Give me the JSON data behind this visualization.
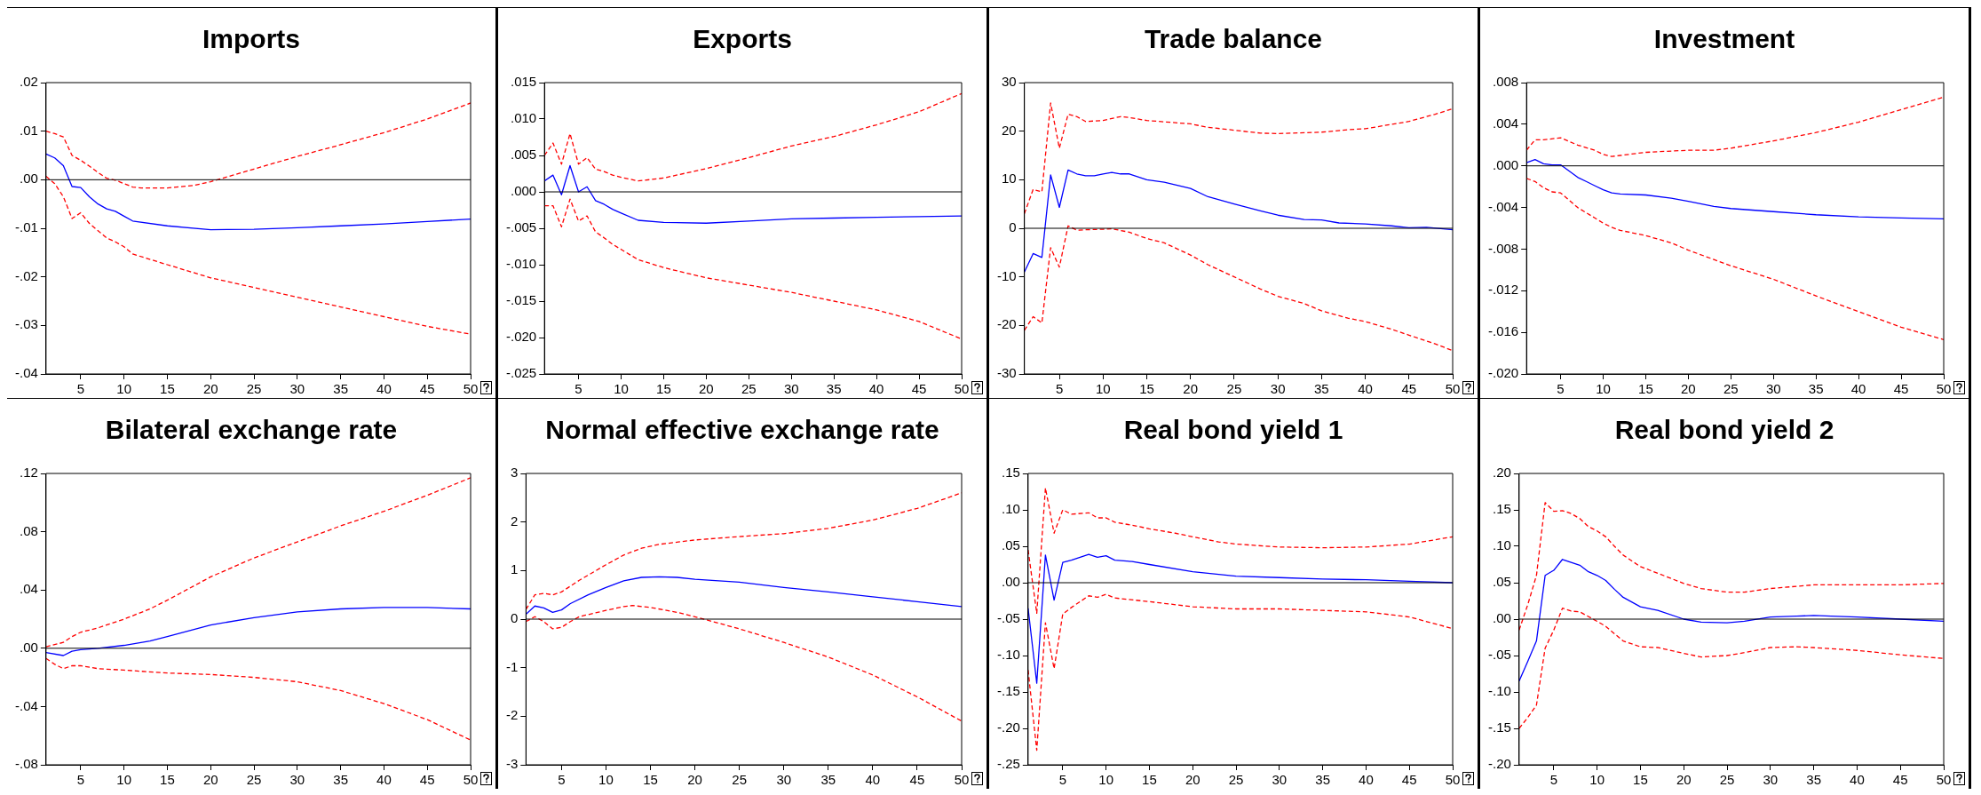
{
  "chart_data": [
    {
      "type": "line",
      "title": "Imports",
      "xlim": [
        1,
        50
      ],
      "xticks": [
        5,
        10,
        15,
        20,
        25,
        30,
        35,
        40,
        45,
        50
      ],
      "ylim": [
        -0.04,
        0.02
      ],
      "yticks": [
        {
          "value": -0.04,
          "label": "-.04"
        },
        {
          "value": -0.03,
          "label": "-.03"
        },
        {
          "value": -0.02,
          "label": "-.02"
        },
        {
          "value": -0.01,
          "label": "-.01"
        },
        {
          "value": 0,
          "label": ".00"
        },
        {
          "value": 0.01,
          "label": ".01"
        },
        {
          "value": 0.02,
          "label": ".02"
        }
      ],
      "grid": false,
      "legend": false,
      "marker": "none",
      "ref_lines": [
        {
          "axis": "y",
          "value": 0,
          "color": "#000000"
        }
      ],
      "series": [
        {
          "color": "#0000ff",
          "line_style": "solid",
          "x": [
            1,
            2,
            3,
            4,
            5,
            6,
            7,
            8,
            9,
            10,
            11,
            15,
            20,
            25,
            30,
            35,
            40,
            45,
            50
          ],
          "values": [
            0.0053,
            0.0045,
            0.0029,
            -0.0014,
            -0.0016,
            -0.0035,
            -0.005,
            -0.006,
            -0.0065,
            -0.0075,
            -0.0085,
            -0.0095,
            -0.0103,
            -0.0102,
            -0.0099,
            -0.0095,
            -0.0091,
            -0.0086,
            -0.0081
          ]
        },
        {
          "color": "#ff0000",
          "line_style": "dashed",
          "x": [
            1,
            2,
            3,
            4,
            5,
            6,
            7,
            8,
            9,
            10,
            11,
            12,
            15,
            18,
            20,
            25,
            30,
            35,
            40,
            45,
            50
          ],
          "values": [
            0.01,
            0.0095,
            0.0088,
            0.005,
            0.004,
            0.0028,
            0.0015,
            0.0003,
            -0.0001,
            -0.0008,
            -0.0015,
            -0.0017,
            -0.0017,
            -0.0012,
            -0.0004,
            0.0022,
            0.0048,
            0.0072,
            0.0097,
            0.0125,
            0.0158
          ]
        },
        {
          "color": "#ff0000",
          "line_style": "dashed",
          "x": [
            1,
            2,
            3,
            4,
            5,
            6,
            7,
            8,
            9,
            10,
            11,
            15,
            20,
            25,
            30,
            35,
            40,
            45,
            50
          ],
          "values": [
            0.0007,
            -0.0008,
            -0.0035,
            -0.008,
            -0.0068,
            -0.009,
            -0.0105,
            -0.012,
            -0.0128,
            -0.0138,
            -0.0153,
            -0.0175,
            -0.0202,
            -0.0222,
            -0.0242,
            -0.0262,
            -0.0282,
            -0.0302,
            -0.0318
          ]
        }
      ]
    },
    {
      "type": "line",
      "title": "Exports",
      "xlim": [
        1,
        50
      ],
      "xticks": [
        5,
        10,
        15,
        20,
        25,
        30,
        35,
        40,
        45,
        50
      ],
      "ylim": [
        -0.025,
        0.015
      ],
      "yticks": [
        {
          "value": -0.025,
          "label": "-.025"
        },
        {
          "value": -0.02,
          "label": "-.020"
        },
        {
          "value": -0.015,
          "label": "-.015"
        },
        {
          "value": -0.01,
          "label": "-.010"
        },
        {
          "value": -0.005,
          "label": "-.005"
        },
        {
          "value": 0,
          "label": ".000"
        },
        {
          "value": 0.005,
          "label": ".005"
        },
        {
          "value": 0.01,
          "label": ".010"
        },
        {
          "value": 0.015,
          "label": ".015"
        }
      ],
      "grid": false,
      "legend": false,
      "marker": "none",
      "ref_lines": [
        {
          "axis": "y",
          "value": 0,
          "color": "#000000"
        }
      ],
      "series": [
        {
          "color": "#0000ff",
          "line_style": "solid",
          "x": [
            1,
            2,
            3,
            4,
            5,
            6,
            7,
            8,
            9,
            10,
            12,
            15,
            20,
            25,
            30,
            35,
            40,
            45,
            50
          ],
          "values": [
            0.0015,
            0.0023,
            -0.0004,
            0.0036,
            0,
            0.0007,
            -0.0012,
            -0.0017,
            -0.0024,
            -0.0029,
            -0.0039,
            -0.0042,
            -0.0043,
            -0.004,
            -0.0037,
            -0.0036,
            -0.0035,
            -0.0034,
            -0.0033
          ]
        },
        {
          "color": "#ff0000",
          "line_style": "dashed",
          "x": [
            1,
            2,
            3,
            4,
            5,
            6,
            7,
            8,
            9,
            10,
            12,
            15,
            20,
            25,
            30,
            35,
            40,
            45,
            50
          ],
          "values": [
            0.005,
            0.0067,
            0.0038,
            0.008,
            0.0038,
            0.0047,
            0.0031,
            0.0028,
            0.0023,
            0.002,
            0.0015,
            0.0019,
            0.0032,
            0.0047,
            0.0063,
            0.0076,
            0.0092,
            0.011,
            0.0135
          ]
        },
        {
          "color": "#ff0000",
          "line_style": "dashed",
          "x": [
            1,
            2,
            3,
            4,
            5,
            6,
            7,
            8,
            9,
            10,
            12,
            15,
            20,
            25,
            30,
            35,
            40,
            45,
            50
          ],
          "values": [
            -0.0019,
            -0.0019,
            -0.0048,
            -0.001,
            -0.004,
            -0.0033,
            -0.0055,
            -0.0063,
            -0.0072,
            -0.0079,
            -0.0093,
            -0.0104,
            -0.0118,
            -0.0128,
            -0.0138,
            -0.015,
            -0.0162,
            -0.0178,
            -0.0202
          ]
        }
      ]
    },
    {
      "type": "line",
      "title": "Trade balance",
      "xlim": [
        1,
        50
      ],
      "xticks": [
        5,
        10,
        15,
        20,
        25,
        30,
        35,
        40,
        45,
        50
      ],
      "ylim": [
        -30,
        30
      ],
      "yticks": [
        -30,
        -20,
        -10,
        0,
        10,
        20,
        30
      ],
      "grid": false,
      "legend": false,
      "marker": "none",
      "ref_lines": [
        {
          "axis": "y",
          "value": 0,
          "color": "#000000"
        }
      ],
      "series": [
        {
          "color": "#0000ff",
          "line_style": "solid",
          "x": [
            1,
            2,
            3,
            4,
            5,
            6,
            7,
            8,
            9,
            10,
            11,
            12,
            13,
            15,
            17,
            20,
            22,
            25,
            28,
            30,
            33,
            35,
            37,
            40,
            43,
            45,
            47,
            50
          ],
          "values": [
            -9,
            -5.2,
            -6,
            11,
            4.3,
            12,
            11.2,
            10.8,
            10.8,
            11.2,
            11.5,
            11.2,
            11.2,
            10,
            9.5,
            8.2,
            6.5,
            5,
            3.6,
            2.7,
            1.8,
            1.7,
            1.1,
            0.9,
            0.5,
            0.1,
            0.2,
            -0.3
          ]
        },
        {
          "color": "#ff0000",
          "line_style": "dashed",
          "x": [
            1,
            2,
            3,
            4,
            5,
            6,
            7,
            8,
            10,
            12,
            13,
            15,
            20,
            22,
            25,
            28,
            30,
            35,
            38,
            40,
            45,
            48,
            50
          ],
          "values": [
            3,
            8,
            7.5,
            25.8,
            16.5,
            23.5,
            23,
            22,
            22.2,
            23,
            22.8,
            22.2,
            21.5,
            20.8,
            20.2,
            19.6,
            19.5,
            19.8,
            20.3,
            20.5,
            22,
            23.5,
            24.6
          ]
        },
        {
          "color": "#ff0000",
          "line_style": "dashed",
          "x": [
            1,
            2,
            3,
            4,
            5,
            6,
            7,
            8,
            10,
            11,
            13,
            15,
            17,
            20,
            22,
            25,
            28,
            30,
            33,
            35,
            38,
            40,
            43,
            45,
            48,
            50
          ],
          "values": [
            -21,
            -18.2,
            -19.5,
            -4,
            -8,
            0.5,
            -0.4,
            -0.3,
            -0.2,
            -0.1,
            -0.8,
            -2.1,
            -3,
            -5.5,
            -7.5,
            -10,
            -12.5,
            -14,
            -15.5,
            -17,
            -18.5,
            -19.2,
            -20.8,
            -22,
            -23.8,
            -25.2
          ]
        }
      ]
    },
    {
      "type": "line",
      "title": "Investment",
      "xlim": [
        1,
        50
      ],
      "xticks": [
        5,
        10,
        15,
        20,
        25,
        30,
        35,
        40,
        45,
        50
      ],
      "ylim": [
        -0.02,
        0.008
      ],
      "yticks": [
        {
          "value": -0.02,
          "label": "-.020"
        },
        {
          "value": -0.016,
          "label": "-.016"
        },
        {
          "value": -0.012,
          "label": "-.012"
        },
        {
          "value": -0.008,
          "label": "-.008"
        },
        {
          "value": -0.004,
          "label": "-.004"
        },
        {
          "value": 0,
          "label": ".000"
        },
        {
          "value": 0.004,
          "label": ".004"
        },
        {
          "value": 0.008,
          "label": ".008"
        }
      ],
      "grid": false,
      "legend": false,
      "marker": "none",
      "ref_lines": [
        {
          "axis": "y",
          "value": 0,
          "color": "#000000"
        }
      ],
      "series": [
        {
          "color": "#0000ff",
          "line_style": "solid",
          "x": [
            1,
            2,
            3,
            4,
            5,
            6,
            7,
            8,
            9,
            10,
            11,
            12,
            15,
            18,
            20,
            23,
            25,
            30,
            35,
            40,
            45,
            50
          ],
          "values": [
            0.0003,
            0.0006,
            0.0002,
            0.0001,
            0.0001,
            -0.0005,
            -0.0011,
            -0.0015,
            -0.0019,
            -0.0023,
            -0.0026,
            -0.0027,
            -0.0028,
            -0.0031,
            -0.0034,
            -0.0039,
            -0.0041,
            -0.0044,
            -0.0047,
            -0.0049,
            -0.005,
            -0.0051
          ]
        },
        {
          "color": "#ff0000",
          "line_style": "dashed",
          "x": [
            1,
            2,
            3,
            5,
            7,
            9,
            10,
            11,
            12,
            15,
            20,
            23,
            25,
            30,
            35,
            40,
            45,
            50
          ],
          "values": [
            0.0015,
            0.0025,
            0.0025,
            0.0027,
            0.002,
            0.0015,
            0.0011,
            0.0009,
            0.001,
            0.0013,
            0.0015,
            0.0015,
            0.0017,
            0.0024,
            0.0032,
            0.0042,
            0.0054,
            0.0066
          ]
        },
        {
          "color": "#ff0000",
          "line_style": "dashed",
          "x": [
            1,
            2,
            3,
            4,
            5,
            6,
            7,
            8,
            9,
            10,
            11,
            12,
            15,
            18,
            20,
            23,
            25,
            30,
            35,
            40,
            45,
            50
          ],
          "values": [
            -0.0012,
            -0.0015,
            -0.0021,
            -0.0025,
            -0.0026,
            -0.0033,
            -0.004,
            -0.0045,
            -0.005,
            -0.0055,
            -0.0059,
            -0.0062,
            -0.0067,
            -0.0074,
            -0.0081,
            -0.009,
            -0.0096,
            -0.0109,
            -0.0125,
            -0.014,
            -0.0155,
            -0.0167
          ]
        }
      ]
    },
    {
      "type": "line",
      "title": "Bilateral exchange rate",
      "xlim": [
        1,
        50
      ],
      "xticks": [
        5,
        10,
        15,
        20,
        25,
        30,
        35,
        40,
        45,
        50
      ],
      "ylim": [
        -0.08,
        0.12
      ],
      "yticks": [
        {
          "value": -0.08,
          "label": "-.08"
        },
        {
          "value": -0.04,
          "label": "-.04"
        },
        {
          "value": 0,
          "label": ".00"
        },
        {
          "value": 0.04,
          "label": ".04"
        },
        {
          "value": 0.08,
          "label": ".08"
        },
        {
          "value": 0.12,
          "label": ".12"
        }
      ],
      "grid": false,
      "legend": false,
      "marker": "none",
      "ref_lines": [
        {
          "axis": "y",
          "value": 0,
          "color": "#000000"
        }
      ],
      "series": [
        {
          "color": "#0000ff",
          "line_style": "solid",
          "x": [
            1,
            3,
            4,
            5,
            7,
            10,
            13,
            15,
            20,
            25,
            30,
            35,
            40,
            45,
            50
          ],
          "values": [
            -0.003,
            -0.005,
            -0.002,
            -0.001,
            0,
            0.002,
            0.005,
            0.008,
            0.016,
            0.021,
            0.025,
            0.027,
            0.028,
            0.028,
            0.027
          ]
        },
        {
          "color": "#ff0000",
          "line_style": "dashed",
          "x": [
            1,
            3,
            4,
            5,
            7,
            10,
            13,
            15,
            20,
            25,
            30,
            35,
            40,
            45,
            50
          ],
          "values": [
            0.001,
            0.004,
            0.008,
            0.011,
            0.014,
            0.02,
            0.027,
            0.033,
            0.049,
            0.062,
            0.073,
            0.084,
            0.094,
            0.105,
            0.117
          ]
        },
        {
          "color": "#ff0000",
          "line_style": "dashed",
          "x": [
            1,
            2,
            3,
            4,
            5,
            7,
            10,
            15,
            20,
            25,
            30,
            35,
            40,
            45,
            50
          ],
          "values": [
            -0.007,
            -0.011,
            -0.014,
            -0.012,
            -0.012,
            -0.014,
            -0.015,
            -0.017,
            -0.018,
            -0.02,
            -0.023,
            -0.029,
            -0.038,
            -0.049,
            -0.063
          ]
        }
      ]
    },
    {
      "type": "line",
      "title": "Normal effective exchange rate",
      "xlim": [
        1,
        50
      ],
      "xticks": [
        5,
        10,
        15,
        20,
        25,
        30,
        35,
        40,
        45,
        50
      ],
      "ylim": [
        -3,
        3
      ],
      "yticks": [
        -3,
        -2,
        -1,
        0,
        1,
        2,
        3
      ],
      "grid": false,
      "legend": false,
      "marker": "none",
      "ref_lines": [
        {
          "axis": "y",
          "value": 0,
          "color": "#000000"
        }
      ],
      "series": [
        {
          "color": "#0000ff",
          "line_style": "solid",
          "x": [
            1,
            2,
            3,
            4,
            5,
            6,
            8,
            10,
            12,
            14,
            16,
            18,
            20,
            25,
            30,
            35,
            40,
            45,
            50
          ],
          "values": [
            0.1,
            0.27,
            0.23,
            0.14,
            0.19,
            0.32,
            0.5,
            0.65,
            0.79,
            0.86,
            0.87,
            0.86,
            0.82,
            0.76,
            0.65,
            0.56,
            0.46,
            0.36,
            0.26
          ]
        },
        {
          "color": "#ff0000",
          "line_style": "dashed",
          "x": [
            1,
            2,
            3,
            4,
            5,
            7,
            10,
            12,
            14,
            16,
            20,
            25,
            30,
            35,
            40,
            45,
            50
          ],
          "values": [
            0.2,
            0.5,
            0.53,
            0.5,
            0.56,
            0.8,
            1.12,
            1.32,
            1.46,
            1.54,
            1.63,
            1.7,
            1.76,
            1.87,
            2.04,
            2.28,
            2.6
          ]
        },
        {
          "color": "#ff0000",
          "line_style": "dashed",
          "x": [
            1,
            2,
            3,
            4,
            5,
            6,
            7,
            10,
            12,
            13,
            15,
            18,
            20,
            22,
            25,
            30,
            35,
            40,
            45,
            50
          ],
          "values": [
            -0.05,
            0.05,
            -0.05,
            -0.2,
            -0.17,
            -0.05,
            0.05,
            0.18,
            0.26,
            0.28,
            0.24,
            0.14,
            0.05,
            -0.05,
            -0.2,
            -0.48,
            -0.78,
            -1.15,
            -1.6,
            -2.1
          ]
        }
      ]
    },
    {
      "type": "line",
      "title": "Real bond yield 1",
      "xlim": [
        1,
        50
      ],
      "xticks": [
        5,
        10,
        15,
        20,
        25,
        30,
        35,
        40,
        45,
        50
      ],
      "ylim": [
        -0.25,
        0.15
      ],
      "yticks": [
        {
          "value": -0.25,
          "label": "-.25"
        },
        {
          "value": -0.2,
          "label": "-.20"
        },
        {
          "value": -0.15,
          "label": "-.15"
        },
        {
          "value": -0.1,
          "label": "-.10"
        },
        {
          "value": -0.05,
          "label": "-.05"
        },
        {
          "value": 0,
          "label": ".00"
        },
        {
          "value": 0.05,
          "label": ".05"
        },
        {
          "value": 0.1,
          "label": ".10"
        },
        {
          "value": 0.15,
          "label": ".15"
        }
      ],
      "grid": false,
      "legend": false,
      "marker": "none",
      "ref_lines": [
        {
          "axis": "y",
          "value": 0,
          "color": "#000000"
        }
      ],
      "series": [
        {
          "color": "#0000ff",
          "line_style": "solid",
          "x": [
            1,
            2,
            3,
            4,
            5,
            6,
            7,
            8,
            9,
            10,
            11,
            13,
            15,
            20,
            25,
            30,
            35,
            40,
            45,
            50
          ],
          "values": [
            -0.035,
            -0.138,
            0.038,
            -0.024,
            0.028,
            0.031,
            0.035,
            0.039,
            0.035,
            0.037,
            0.031,
            0.029,
            0.025,
            0.015,
            0.009,
            0.007,
            0.005,
            0.004,
            0.002,
            0
          ]
        },
        {
          "color": "#ff0000",
          "line_style": "dashed",
          "x": [
            1,
            2,
            3,
            4,
            5,
            6,
            8,
            9,
            10,
            11,
            13,
            15,
            18,
            20,
            23,
            25,
            30,
            35,
            40,
            45,
            50
          ],
          "values": [
            0.045,
            -0.042,
            0.13,
            0.068,
            0.1,
            0.094,
            0.096,
            0.089,
            0.089,
            0.083,
            0.079,
            0.074,
            0.068,
            0.063,
            0.056,
            0.053,
            0.049,
            0.048,
            0.049,
            0.053,
            0.063
          ]
        },
        {
          "color": "#ff0000",
          "line_style": "dashed",
          "x": [
            1,
            2,
            3,
            4,
            5,
            6,
            8,
            9,
            10,
            11,
            15,
            20,
            25,
            30,
            35,
            40,
            45,
            50
          ],
          "values": [
            -0.12,
            -0.23,
            -0.055,
            -0.118,
            -0.043,
            -0.034,
            -0.018,
            -0.02,
            -0.016,
            -0.021,
            -0.026,
            -0.033,
            -0.036,
            -0.036,
            -0.038,
            -0.04,
            -0.047,
            -0.063
          ]
        }
      ]
    },
    {
      "type": "line",
      "title": "Real bond yield 2",
      "xlim": [
        1,
        50
      ],
      "xticks": [
        5,
        10,
        15,
        20,
        25,
        30,
        35,
        40,
        45,
        50
      ],
      "ylim": [
        -0.2,
        0.2
      ],
      "yticks": [
        {
          "value": -0.2,
          "label": "-.20"
        },
        {
          "value": -0.15,
          "label": "-.15"
        },
        {
          "value": -0.1,
          "label": "-.10"
        },
        {
          "value": -0.05,
          "label": "-.05"
        },
        {
          "value": 0,
          "label": ".00"
        },
        {
          "value": 0.05,
          "label": ".05"
        },
        {
          "value": 0.1,
          "label": ".10"
        },
        {
          "value": 0.15,
          "label": ".15"
        },
        {
          "value": 0.2,
          "label": ".20"
        }
      ],
      "grid": false,
      "legend": false,
      "marker": "none",
      "ref_lines": [
        {
          "axis": "y",
          "value": 0,
          "color": "#000000"
        }
      ],
      "series": [
        {
          "color": "#0000ff",
          "line_style": "solid",
          "x": [
            1,
            2,
            3,
            4,
            5,
            6,
            7,
            8,
            9,
            10,
            11,
            12,
            13,
            15,
            17,
            20,
            22,
            25,
            27,
            30,
            33,
            35,
            37,
            40,
            45,
            50
          ],
          "values": [
            -0.085,
            -0.058,
            -0.03,
            0.06,
            0.067,
            0.082,
            0.078,
            0.074,
            0.065,
            0.06,
            0.053,
            0.041,
            0.03,
            0.017,
            0.012,
            0,
            -0.004,
            -0.005,
            -0.003,
            0.003,
            0.004,
            0.005,
            0.004,
            0.003,
            0,
            -0.003
          ]
        },
        {
          "color": "#ff0000",
          "line_style": "dashed",
          "x": [
            1,
            2,
            3,
            4,
            5,
            6,
            7,
            8,
            9,
            10,
            11,
            12,
            13,
            15,
            17,
            20,
            22,
            25,
            27,
            30,
            33,
            35,
            40,
            45,
            50
          ],
          "values": [
            -0.015,
            0.02,
            0.06,
            0.16,
            0.148,
            0.149,
            0.145,
            0.138,
            0.127,
            0.121,
            0.113,
            0.1,
            0.088,
            0.072,
            0.063,
            0.049,
            0.042,
            0.037,
            0.037,
            0.042,
            0.045,
            0.047,
            0.047,
            0.047,
            0.049
          ]
        },
        {
          "color": "#ff0000",
          "line_style": "dashed",
          "x": [
            1,
            2,
            3,
            4,
            5,
            6,
            7,
            8,
            10,
            11,
            13,
            15,
            17,
            20,
            22,
            25,
            27,
            30,
            33,
            35,
            40,
            45,
            50
          ],
          "values": [
            -0.15,
            -0.135,
            -0.118,
            -0.04,
            -0.015,
            0.015,
            0.011,
            0.01,
            -0.003,
            -0.01,
            -0.03,
            -0.038,
            -0.039,
            -0.047,
            -0.052,
            -0.05,
            -0.046,
            -0.039,
            -0.038,
            -0.039,
            -0.043,
            -0.049,
            -0.054
          ]
        }
      ]
    }
  ]
}
